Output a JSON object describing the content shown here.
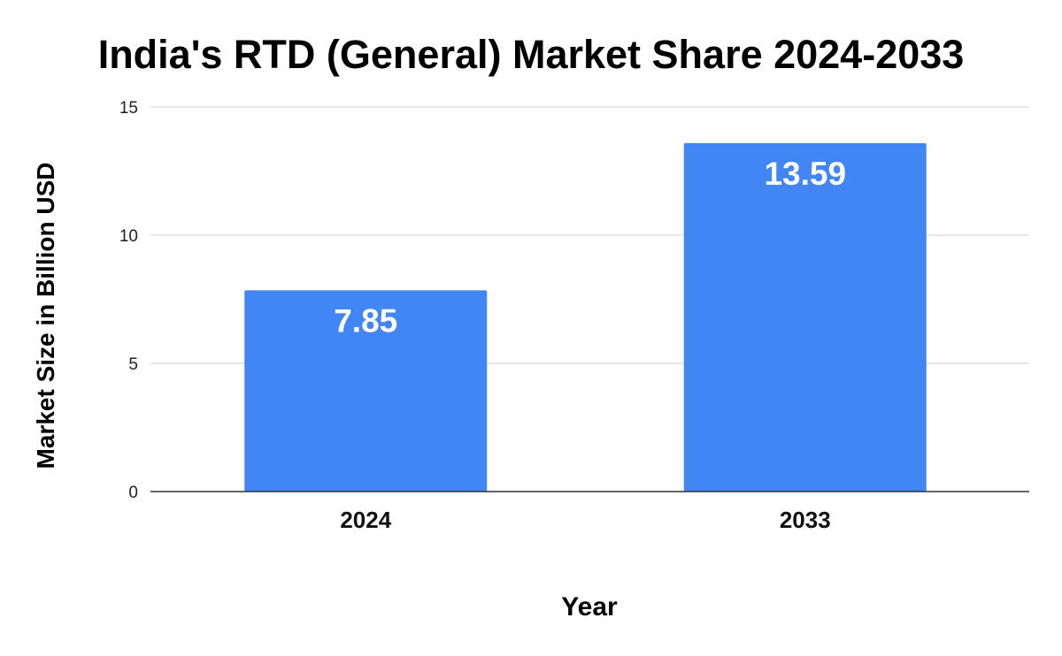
{
  "chart_data": {
    "type": "bar",
    "title": "India's RTD (General) Market Share 2024-2033",
    "xlabel": "Year",
    "ylabel": "Market Size in Billion USD",
    "categories": [
      "2024",
      "2033"
    ],
    "values": [
      7.85,
      13.59
    ],
    "data_labels": [
      "7.85",
      "13.59"
    ],
    "yticks": [
      "0",
      "5",
      "10",
      "15"
    ],
    "ylim": [
      0,
      15
    ],
    "grid": true,
    "legend": "none",
    "bar_color": "#4285f4"
  }
}
